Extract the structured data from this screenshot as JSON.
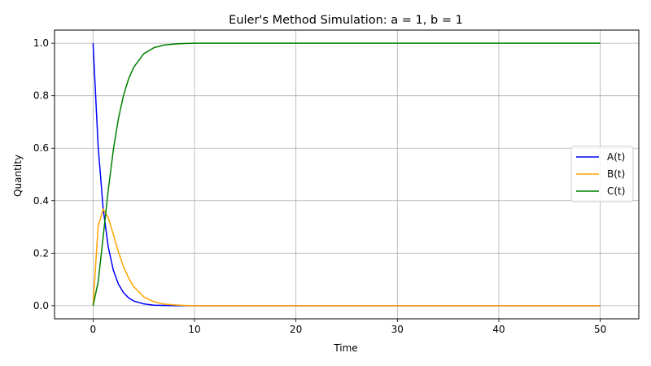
{
  "chart_data": {
    "type": "line",
    "title": "Euler's Method Simulation: a = 1, b = 1",
    "xlabel": "Time",
    "ylabel": "Quantity",
    "xlim": [
      -3.8,
      53.8
    ],
    "ylim": [
      -0.05,
      1.05
    ],
    "xticks": [
      0,
      10,
      20,
      30,
      40,
      50
    ],
    "yticks": [
      0.0,
      0.2,
      0.4,
      0.6,
      0.8,
      1.0
    ],
    "xtick_labels": [
      "0",
      "10",
      "20",
      "30",
      "40",
      "50"
    ],
    "ytick_labels": [
      "0.0",
      "0.2",
      "0.4",
      "0.6",
      "0.8",
      "1.0"
    ],
    "grid": true,
    "legend_position": "center-right",
    "x": [
      0,
      0.5,
      1,
      1.5,
      2,
      2.5,
      3,
      3.5,
      4,
      5,
      6,
      7,
      8,
      9,
      10,
      15,
      20,
      30,
      40,
      50
    ],
    "series": [
      {
        "name": "A(t)",
        "color": "#0000ff",
        "values": [
          1.0,
          0.607,
          0.368,
          0.223,
          0.135,
          0.082,
          0.05,
          0.03,
          0.018,
          0.007,
          0.002,
          0.001,
          0.0,
          0.0,
          0.0,
          0.0,
          0.0,
          0.0,
          0.0,
          0.0
        ]
      },
      {
        "name": "B(t)",
        "color": "#ffa500",
        "values": [
          0.0,
          0.303,
          0.368,
          0.335,
          0.271,
          0.205,
          0.149,
          0.106,
          0.073,
          0.034,
          0.015,
          0.006,
          0.003,
          0.001,
          0.0,
          0.0,
          0.0,
          0.0,
          0.0,
          0.0
        ]
      },
      {
        "name": "C(t)",
        "color": "#008000",
        "values": [
          0.0,
          0.09,
          0.264,
          0.442,
          0.594,
          0.713,
          0.801,
          0.864,
          0.908,
          0.96,
          0.983,
          0.993,
          0.997,
          0.999,
          1.0,
          1.0,
          1.0,
          1.0,
          1.0,
          1.0
        ]
      }
    ]
  }
}
